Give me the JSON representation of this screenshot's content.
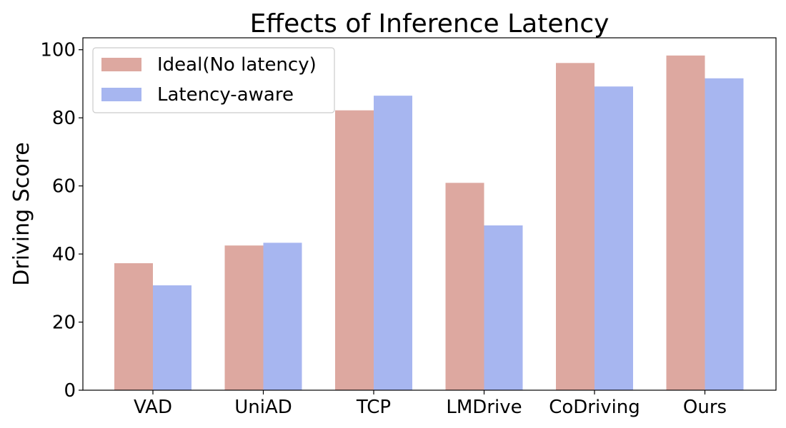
{
  "chart_data": {
    "type": "bar",
    "title": "Effects of Inference Latency",
    "xlabel": "",
    "ylabel": "Driving Score",
    "categories": [
      "VAD",
      "UniAD",
      "TCP",
      "LMDrive",
      "CoDriving",
      "Ours"
    ],
    "series": [
      {
        "name": "Ideal(No latency)",
        "color": "#dda8a0",
        "values": [
          37.3,
          42.5,
          82.2,
          60.9,
          96.1,
          98.3
        ]
      },
      {
        "name": "Latency-aware",
        "color": "#a7b6f0",
        "values": [
          30.8,
          43.3,
          86.5,
          48.4,
          89.2,
          91.6
        ]
      }
    ],
    "ylim": [
      0,
      103.5
    ],
    "yticks": [
      0,
      20,
      40,
      60,
      80,
      100
    ],
    "grid": false,
    "legend": "top-left"
  }
}
